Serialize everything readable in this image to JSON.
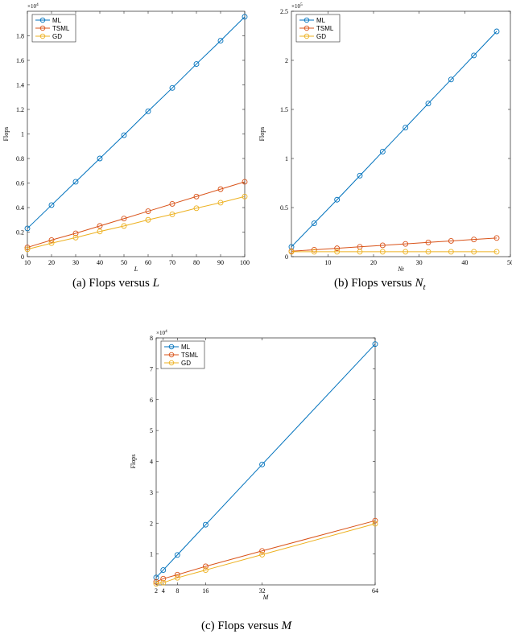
{
  "colors": {
    "ML": "#0072BD",
    "TSML": "#D95319",
    "GD": "#EDB120"
  },
  "captions": {
    "a": {
      "tag": "(a)",
      "text": "Flops versus",
      "var": "L",
      "sub": ""
    },
    "b": {
      "tag": "(b)",
      "text": "Flops versus",
      "var": "N",
      "sub": "t"
    },
    "c": {
      "tag": "(c)",
      "text": "Flops versus",
      "var": "M",
      "sub": ""
    }
  },
  "chart_data": [
    {
      "id": "a",
      "type": "line",
      "xlabel": "L",
      "ylabel": "Flops",
      "xlim": [
        10,
        100
      ],
      "ylim": [
        0,
        20000
      ],
      "y_multiplier": "×10",
      "y_exponent": "4",
      "xticks": [
        10,
        20,
        30,
        40,
        50,
        60,
        70,
        80,
        90,
        100
      ],
      "xtick_labels": [
        "10",
        "20",
        "30",
        "40",
        "50",
        "60",
        "70",
        "80",
        "90",
        "100"
      ],
      "yticks": [
        0,
        2000,
        4000,
        6000,
        8000,
        10000,
        12000,
        14000,
        16000,
        18000
      ],
      "ytick_labels": [
        "0",
        "0.2",
        "0.4",
        "0.6",
        "0.8",
        "1",
        "1.2",
        "1.4",
        "1.6",
        "1.8"
      ],
      "legend_position": "top-left",
      "x": [
        10,
        20,
        30,
        40,
        50,
        60,
        70,
        80,
        90,
        100
      ],
      "series": [
        {
          "name": "ML",
          "values": [
            2300,
            4200,
            6100,
            8000,
            9900,
            11850,
            13750,
            15700,
            17600,
            19550
          ]
        },
        {
          "name": "TSML",
          "values": [
            750,
            1350,
            1900,
            2500,
            3100,
            3700,
            4300,
            4900,
            5500,
            6100
          ]
        },
        {
          "name": "GD",
          "values": [
            600,
            1100,
            1550,
            2050,
            2500,
            3000,
            3450,
            3950,
            4400,
            4900
          ]
        }
      ]
    },
    {
      "id": "b",
      "type": "line",
      "xlabel": "Nt",
      "ylabel": "Flops",
      "xlim": [
        2,
        50
      ],
      "ylim": [
        0,
        250000
      ],
      "y_multiplier": "×10",
      "y_exponent": "5",
      "xticks": [
        10,
        20,
        30,
        40,
        50
      ],
      "xtick_labels": [
        "10",
        "20",
        "30",
        "40",
        "50"
      ],
      "yticks": [
        0,
        50000,
        100000,
        150000,
        200000,
        250000
      ],
      "ytick_labels": [
        "0",
        "0.5",
        "1",
        "1.5",
        "2",
        "2.5"
      ],
      "legend_position": "top-left",
      "x": [
        2,
        7,
        12,
        17,
        22,
        27,
        32,
        37,
        42,
        47
      ],
      "series": [
        {
          "name": "ML",
          "values": [
            10000,
            34000,
            58000,
            82500,
            107000,
            131500,
            156000,
            180500,
            205000,
            229500
          ]
        },
        {
          "name": "TSML",
          "values": [
            5500,
            7000,
            8500,
            10000,
            11500,
            13000,
            14500,
            16000,
            17500,
            19000
          ]
        },
        {
          "name": "GD",
          "values": [
            5000,
            5000,
            5000,
            5000,
            5000,
            5000,
            5000,
            5000,
            5000,
            5000
          ]
        }
      ]
    },
    {
      "id": "c",
      "type": "line",
      "xlabel": "M",
      "ylabel": "Flops",
      "xlim": [
        2,
        64
      ],
      "ylim": [
        0,
        80000
      ],
      "y_multiplier": "×10",
      "y_exponent": "4",
      "xticks": [
        2,
        4,
        8,
        16,
        32,
        64
      ],
      "xtick_labels": [
        "2",
        "4",
        "8",
        "16",
        "32",
        "64"
      ],
      "yticks": [
        10000,
        20000,
        30000,
        40000,
        50000,
        60000,
        70000,
        80000
      ],
      "ytick_labels": [
        "1",
        "2",
        "3",
        "4",
        "5",
        "6",
        "7",
        "8"
      ],
      "legend_position": "top-left",
      "x": [
        2,
        4,
        8,
        16,
        32,
        64
      ],
      "series": [
        {
          "name": "ML",
          "values": [
            2400,
            4800,
            9700,
            19500,
            39000,
            78000
          ]
        },
        {
          "name": "TSML",
          "values": [
            1000,
            2000,
            3300,
            6000,
            11000,
            20800
          ]
        },
        {
          "name": "GD",
          "values": [
            350,
            700,
            2300,
            4800,
            9800,
            19800
          ]
        }
      ]
    }
  ]
}
